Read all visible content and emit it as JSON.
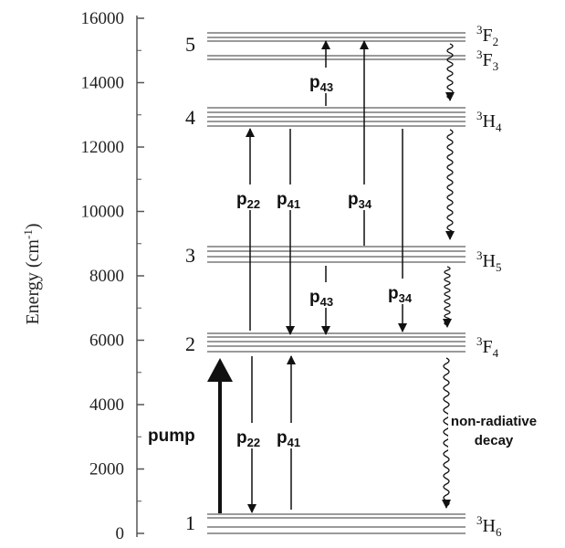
{
  "axis": {
    "label_main": "Energy (cm",
    "label_sup": "-1",
    "label_end": ")",
    "ticks": [
      "0",
      "2000",
      "4000",
      "6000",
      "8000",
      "10000",
      "12000",
      "14000",
      "16000"
    ]
  },
  "levels": [
    {
      "number": "1",
      "term_sup": "3",
      "term_base": "H",
      "term_sub": "6"
    },
    {
      "number": "2",
      "term_sup": "3",
      "term_base": "F",
      "term_sub": "4"
    },
    {
      "number": "3",
      "term_sup": "3",
      "term_base": "H",
      "term_sub": "5"
    },
    {
      "number": "4",
      "term_sup": "3",
      "term_base": "H",
      "term_sub": "4"
    },
    {
      "number": "5",
      "term_sup": "3",
      "term_base": "F",
      "term_sub": "2"
    }
  ],
  "extra_term": {
    "term_sup": "3",
    "term_base": "F",
    "term_sub": "3"
  },
  "processes": {
    "pump": "pump",
    "p22_base": "p",
    "p22_sub": "22",
    "p41_base": "p",
    "p41_sub": "41",
    "p34_base": "p",
    "p34_sub": "34",
    "p43_base": "p",
    "p43_sub": "43"
  },
  "annotation": {
    "line1": "non-radiative",
    "line2": "decay"
  },
  "colors": {
    "level_lines": "#9a9a9a",
    "arrows": "#111111",
    "axis": "#555555"
  }
}
